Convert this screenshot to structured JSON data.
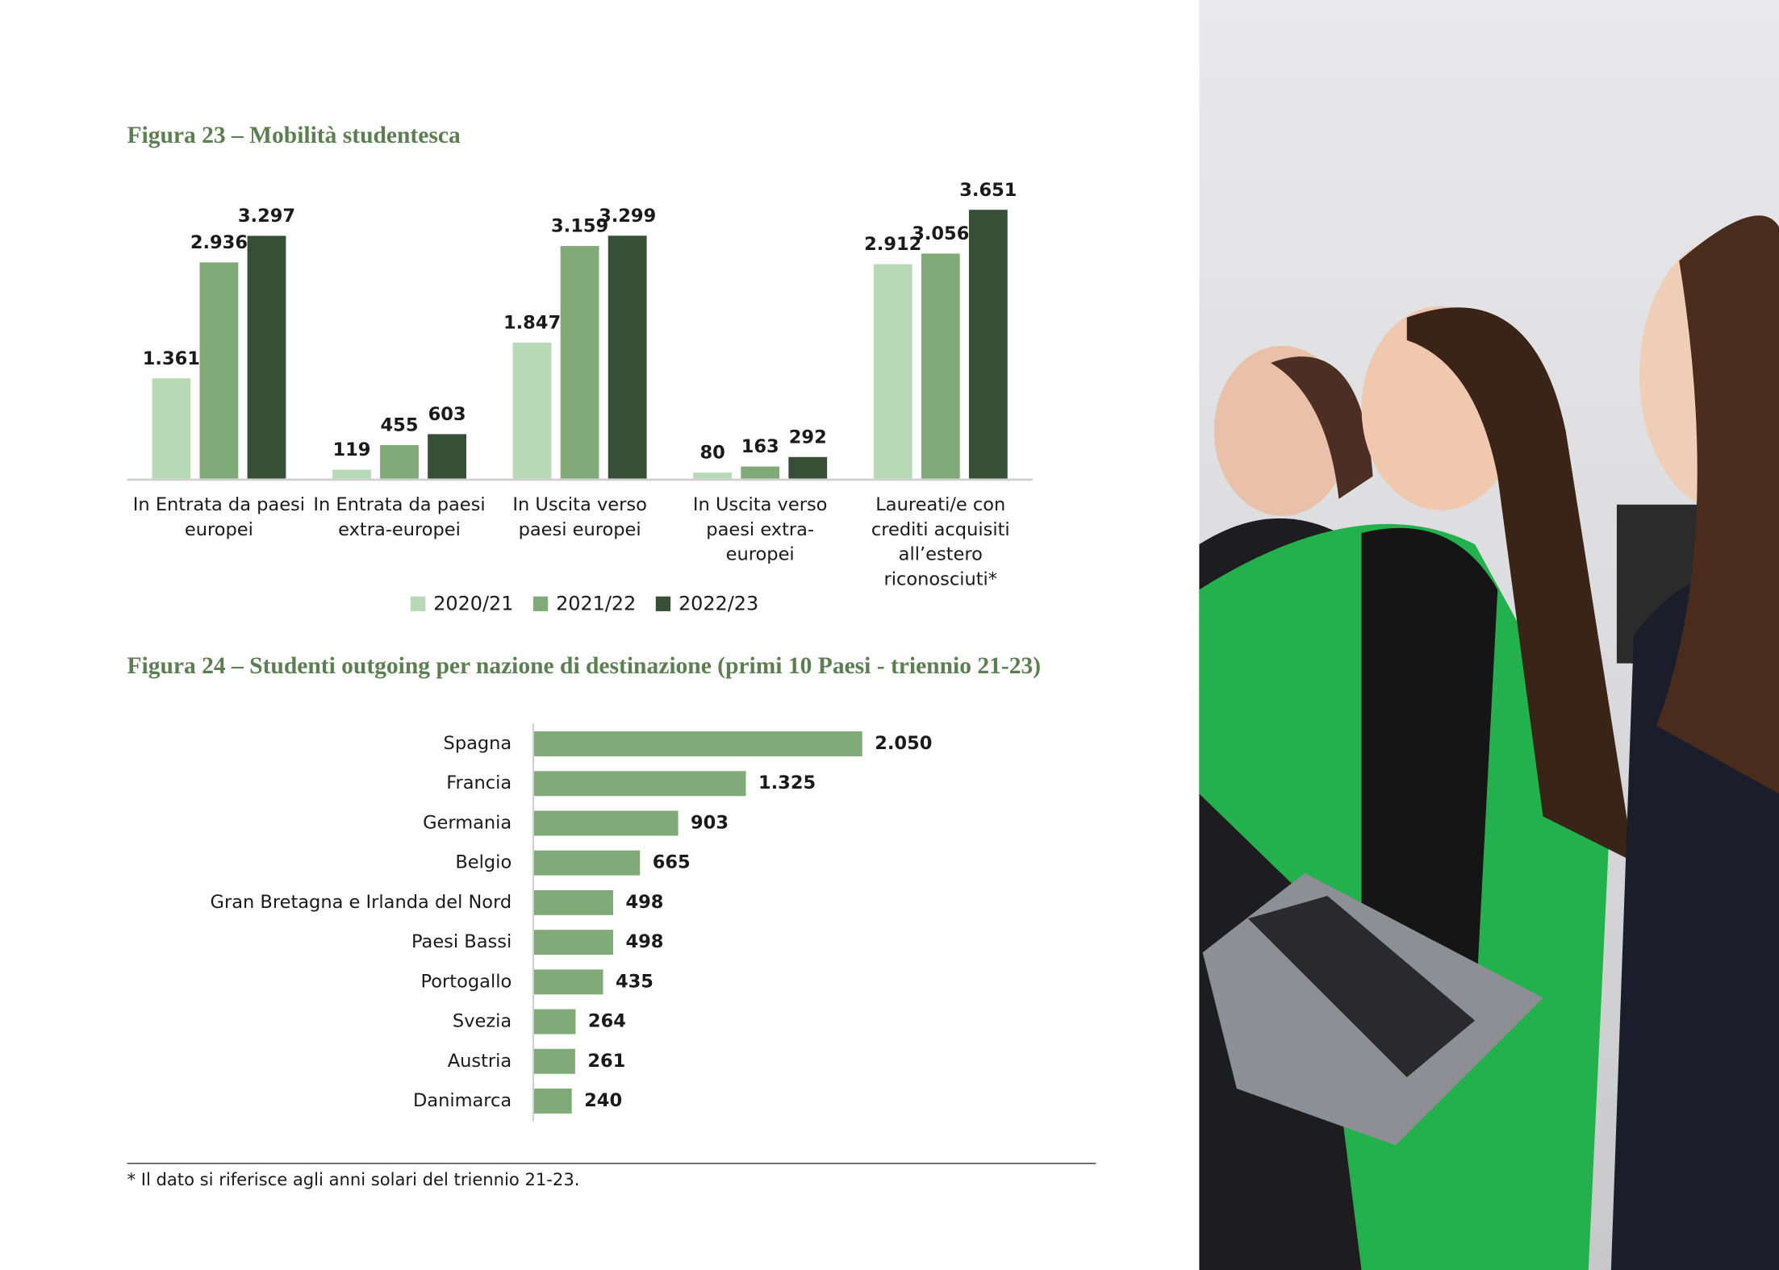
{
  "chart_data": [
    {
      "type": "grouped-bar",
      "title": "Figura 23 – Mobilità studentesca",
      "categories": [
        "In Entrata da paesi europei",
        "In Entrata da paesi extra-europei",
        "In Uscita verso paesi europei",
        "In Uscita verso paesi extra-europei",
        "Laureati/e con crediti acquisiti all’estero riconosciuti*"
      ],
      "series": [
        {
          "name": "2020/21",
          "color": "#b8d9b5",
          "values": [
            1361,
            119,
            1847,
            80,
            2912
          ],
          "value_labels": [
            "1.361",
            "119",
            "1.847",
            "80",
            "2.912"
          ]
        },
        {
          "name": "2021/22",
          "color": "#80ab78",
          "values": [
            2936,
            455,
            3159,
            163,
            3056
          ],
          "value_labels": [
            "2.936",
            "455",
            "3.159",
            "163",
            "3.056"
          ]
        },
        {
          "name": "2022/23",
          "color": "#374f37",
          "values": [
            3297,
            603,
            3299,
            292,
            3651
          ],
          "value_labels": [
            "3.297",
            "603",
            "3.299",
            "292",
            "3.651"
          ]
        }
      ],
      "legend": "bottom"
    },
    {
      "type": "hbar",
      "title": "Figura 24 – Studenti outgoing per nazione di destinazione (primi 10 Paesi - triennio 21-23)",
      "categories": [
        "Spagna",
        "Francia",
        "Germania",
        "Belgio",
        "Gran Bretagna e Irlanda del Nord",
        "Paesi Bassi",
        "Portogallo",
        "Svezia",
        "Austria",
        "Danimarca"
      ],
      "values": [
        2050,
        1325,
        903,
        665,
        498,
        498,
        435,
        264,
        261,
        240
      ],
      "value_labels": [
        "2.050",
        "1.325",
        "903",
        "665",
        "498",
        "498",
        "435",
        "264",
        "261",
        "240"
      ],
      "color": "#80ab78"
    }
  ],
  "footnote": "* Il dato si riferisce agli anni solari del triennio 21-23."
}
